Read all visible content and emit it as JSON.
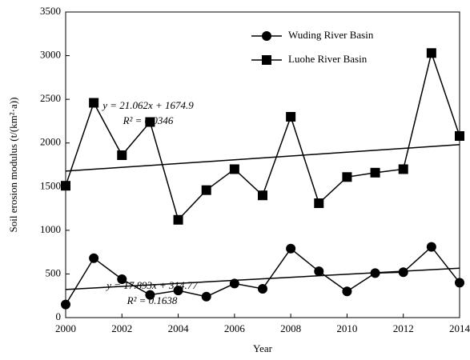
{
  "chart_data": {
    "type": "line",
    "x_label": "Year",
    "y_label": "Soil erosion modulus (t/(km²·a))",
    "x": [
      2000,
      2001,
      2002,
      2003,
      2004,
      2005,
      2006,
      2007,
      2008,
      2009,
      2010,
      2011,
      2012,
      2013,
      2014
    ],
    "series": [
      {
        "name": "Wuding River Basin",
        "color": "#000000",
        "marker": "circle",
        "values": [
          150,
          680,
          440,
          260,
          310,
          240,
          390,
          330,
          790,
          530,
          300,
          510,
          520,
          810,
          400
        ]
      },
      {
        "name": "Luohe River Basin",
        "color": "#000000",
        "marker": "square",
        "values": [
          1510,
          2460,
          1860,
          2240,
          1120,
          1460,
          1700,
          1400,
          2300,
          1310,
          1610,
          1660,
          1700,
          3030,
          2080
        ]
      }
    ],
    "annotations": [
      {
        "equation": "y = 17.893x + 314.77",
        "r2": "R² = 0.1638"
      },
      {
        "equation": "y = 21.062x + 1674.9",
        "r2": "R² = 0.0346"
      }
    ],
    "xlim": [
      2000,
      2014
    ],
    "xticks": [
      2000,
      2002,
      2004,
      2006,
      2008,
      2010,
      2012,
      2014
    ],
    "ylim": [
      0,
      3500
    ],
    "yticks": [
      0,
      500,
      1000,
      1500,
      2000,
      2500,
      3000,
      3500
    ],
    "trendline": true,
    "legend": "top-right"
  }
}
